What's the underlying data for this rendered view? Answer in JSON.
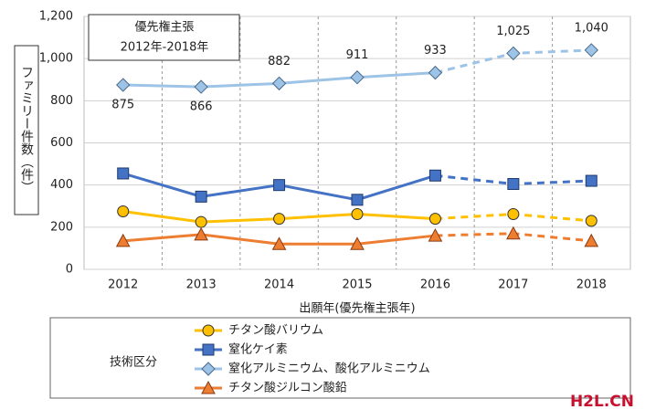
{
  "chart_data": {
    "type": "line",
    "annotation": [
      "優先権主張",
      "2012年-2018年"
    ],
    "y_label": "ファミリー件数（件）",
    "x_label": "出願年(優先権主張年)",
    "legend_title": "技術区分",
    "watermark": "H2L.CN",
    "categories": [
      "2012",
      "2013",
      "2014",
      "2015",
      "2016",
      "2017",
      "2018"
    ],
    "dashed_from": "2016",
    "grid": true,
    "ylim": [
      0,
      1200
    ],
    "yticks": [
      0,
      200,
      400,
      600,
      800,
      {
        "value": 1000,
        "label": "1,000"
      },
      {
        "value": 1200,
        "label": "1,200"
      }
    ],
    "series": [
      {
        "name": "チタン酸バリウム",
        "color": "#FFC000",
        "marker": "circle",
        "values": [
          275,
          225,
          240,
          262,
          240,
          262,
          230
        ]
      },
      {
        "name": "窒化ケイ素",
        "color": "#4472C4",
        "marker": "square",
        "values": [
          455,
          345,
          400,
          330,
          445,
          405,
          420
        ]
      },
      {
        "name": "窒化アルミニウム、酸化アルミニウム",
        "color": "#9DC3E6",
        "marker": "diamond",
        "values": [
          875,
          866,
          882,
          911,
          933,
          1025,
          1040
        ],
        "value_labels": [
          "875",
          "866",
          "882",
          "911",
          "933",
          "1,025",
          "1,040"
        ]
      },
      {
        "name": "チタン酸ジルコン酸鉛",
        "color": "#ED7D31",
        "marker": "triangle",
        "values": [
          135,
          165,
          120,
          120,
          160,
          170,
          135
        ]
      }
    ]
  }
}
